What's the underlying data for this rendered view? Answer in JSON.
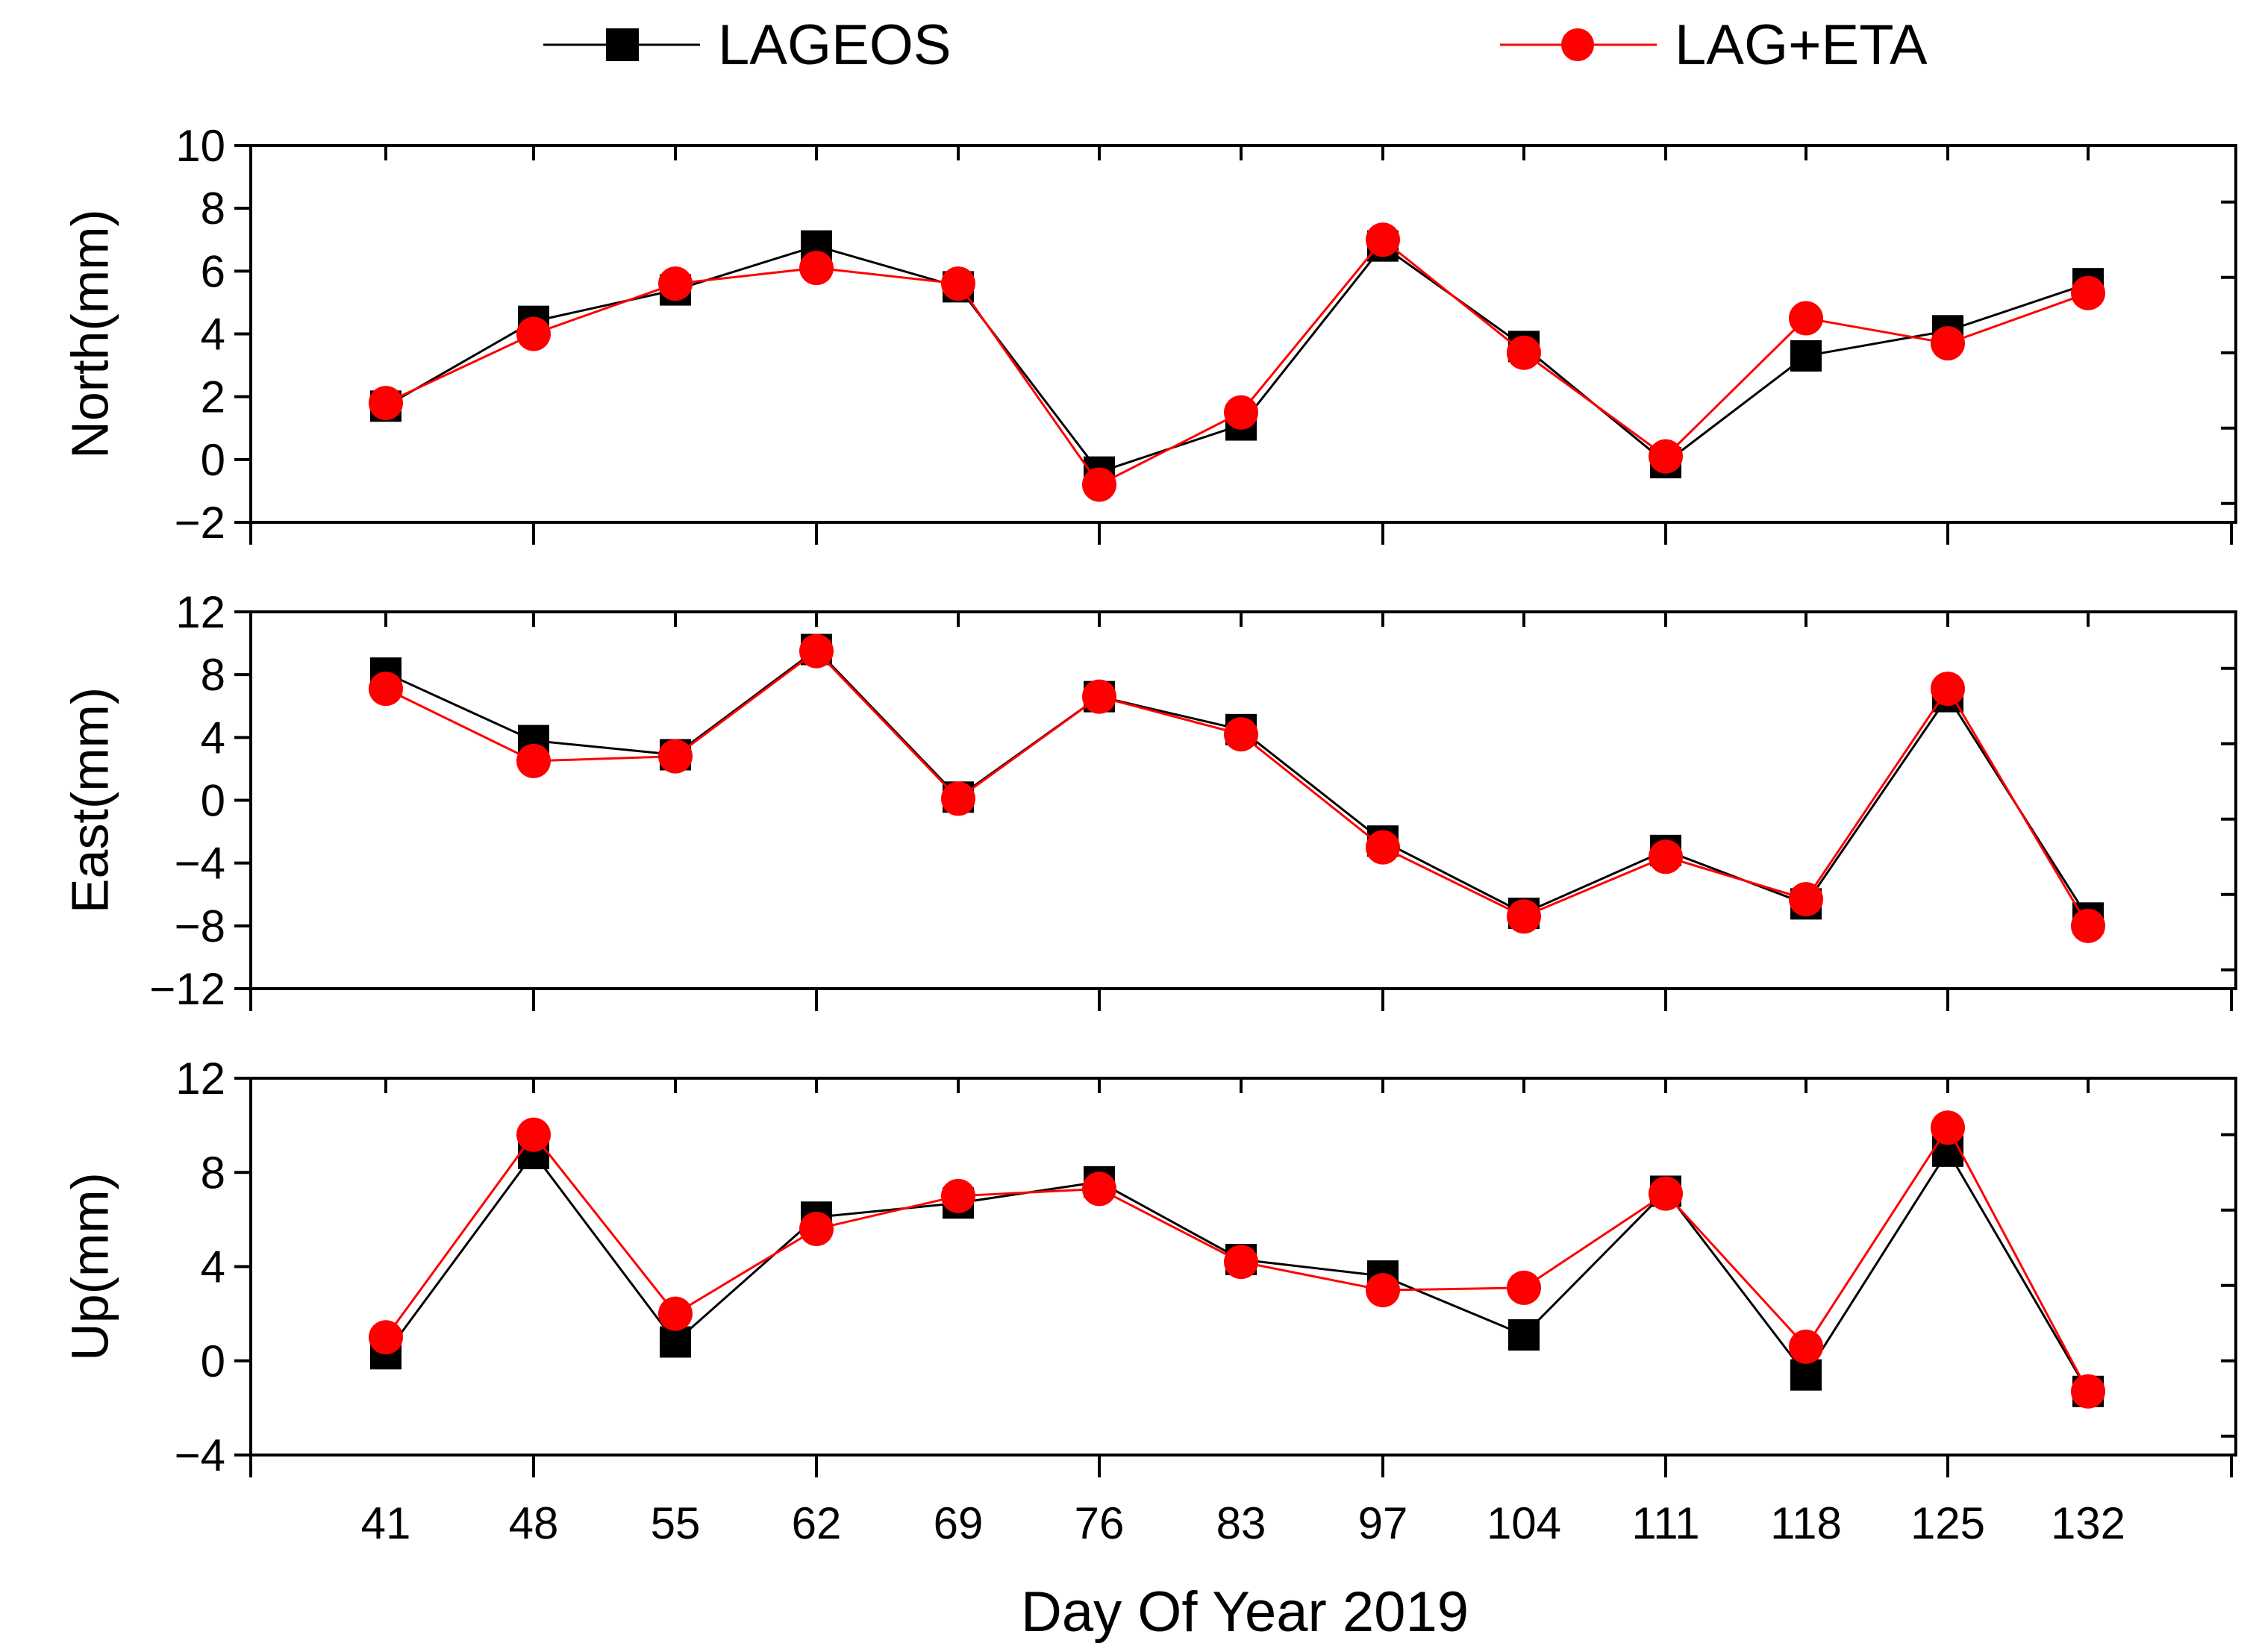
{
  "legend": {
    "lageos": "LAGEOS",
    "lageta": "LAG+ETA"
  },
  "colors": {
    "lageos": "#000000",
    "lageta": "#ff0000"
  },
  "xlabel": "Day Of Year 2019",
  "chart_data": [
    {
      "type": "line",
      "panel": "north",
      "ylabel": "North(mm)",
      "ylim": [
        -2,
        10
      ],
      "yticks": [
        -2,
        0,
        2,
        4,
        6,
        8,
        10
      ],
      "ytick_labels": [
        "−2",
        "0",
        "2",
        "4",
        "6",
        "8",
        "10"
      ],
      "categories": [
        "41",
        "48",
        "55",
        "62",
        "69",
        "76",
        "83",
        "97",
        "104",
        "111",
        "118",
        "125",
        "132"
      ],
      "series": [
        {
          "name": "LAGEOS",
          "values": [
            1.7,
            4.4,
            5.4,
            6.8,
            5.5,
            -0.4,
            1.1,
            6.8,
            3.6,
            -0.1,
            3.3,
            4.1,
            5.6
          ]
        },
        {
          "name": "LAG+ETA",
          "values": [
            1.8,
            4.0,
            5.6,
            6.1,
            5.6,
            -0.8,
            1.5,
            7.0,
            3.4,
            0.1,
            4.5,
            3.7,
            5.3
          ]
        }
      ]
    },
    {
      "type": "line",
      "panel": "east",
      "ylabel": "East(mm)",
      "ylim": [
        -12,
        12
      ],
      "yticks": [
        -12,
        -8,
        -4,
        0,
        4,
        8,
        12
      ],
      "ytick_labels": [
        "−12",
        "−8",
        "−4",
        "0",
        "4",
        "8",
        "12"
      ],
      "categories": [
        "41",
        "48",
        "55",
        "62",
        "69",
        "76",
        "83",
        "97",
        "104",
        "111",
        "118",
        "125",
        "132"
      ],
      "series": [
        {
          "name": "LAGEOS",
          "values": [
            8.1,
            3.8,
            2.9,
            9.6,
            0.2,
            6.6,
            4.5,
            -2.6,
            -7.2,
            -3.2,
            -6.6,
            6.6,
            -7.5
          ]
        },
        {
          "name": "LAG+ETA",
          "values": [
            7.1,
            2.5,
            2.8,
            9.5,
            0.1,
            6.6,
            4.2,
            -3.0,
            -7.4,
            -3.6,
            -6.3,
            7.1,
            -8.0
          ]
        }
      ]
    },
    {
      "type": "line",
      "panel": "up",
      "ylabel": "Up(mm)",
      "ylim": [
        -4,
        12
      ],
      "yticks": [
        -4,
        0,
        4,
        8,
        12
      ],
      "ytick_labels": [
        "−4",
        "0",
        "4",
        "8",
        "12"
      ],
      "categories": [
        "41",
        "48",
        "55",
        "62",
        "69",
        "76",
        "83",
        "97",
        "104",
        "111",
        "118",
        "125",
        "132"
      ],
      "series": [
        {
          "name": "LAGEOS",
          "values": [
            0.3,
            8.8,
            0.8,
            6.1,
            6.7,
            7.6,
            4.3,
            3.6,
            1.1,
            7.2,
            -0.6,
            8.9,
            -1.3
          ]
        },
        {
          "name": "LAG+ETA",
          "values": [
            1.0,
            9.6,
            2.0,
            5.6,
            7.0,
            7.3,
            4.2,
            3.0,
            3.1,
            7.1,
            0.6,
            9.9,
            -1.3
          ]
        }
      ]
    }
  ]
}
